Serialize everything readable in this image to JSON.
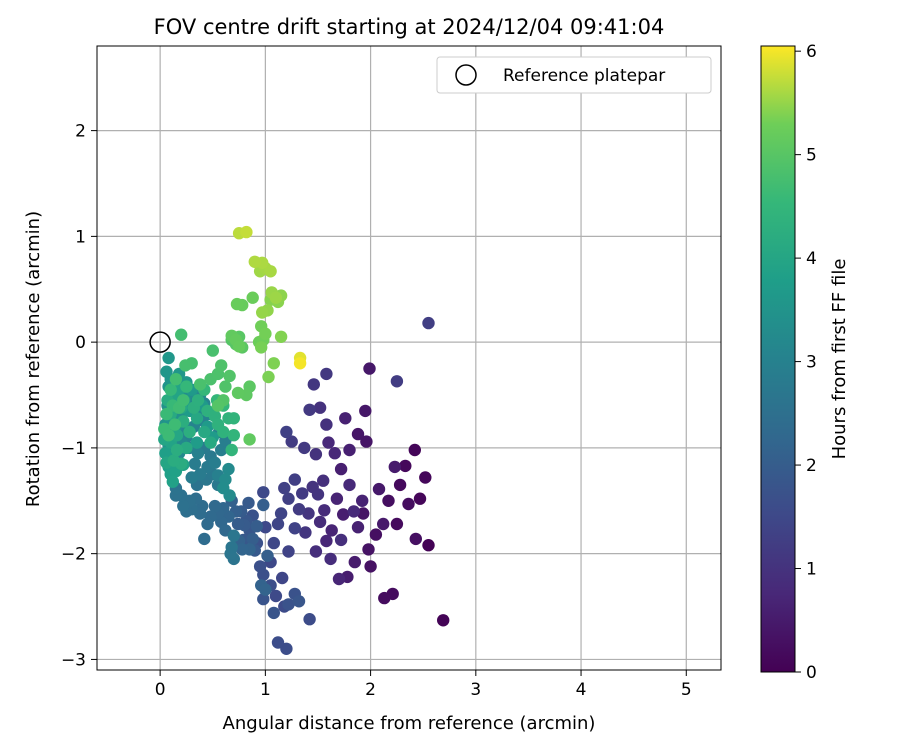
{
  "chart_data": {
    "type": "scatter",
    "title": "FOV centre drift starting at 2024/12/04 09:41:04",
    "xlabel": "Angular distance from reference (arcmin)",
    "ylabel": "Rotation from reference (arcmin)",
    "xlim": [
      -0.6,
      5.33
    ],
    "ylim": [
      -3.1,
      2.8
    ],
    "xticks": [
      0,
      1,
      2,
      3,
      4,
      5
    ],
    "xtick_labels": [
      "0",
      "1",
      "2",
      "3",
      "4",
      "5"
    ],
    "yticks": [
      -3,
      -2,
      -1,
      0,
      1,
      2
    ],
    "ytick_labels": [
      "−3",
      "−2",
      "−1",
      "0",
      "1",
      "2"
    ],
    "grid": true,
    "legend": {
      "placement": "top-right",
      "label": "Reference platepar"
    },
    "reference_point": {
      "x": 0,
      "y": 0
    },
    "colormap": "viridis",
    "colorbar": {
      "label": "Hours from first FF file",
      "range": [
        0,
        6.05
      ],
      "ticks": [
        0,
        1,
        2,
        3,
        4,
        5,
        6
      ],
      "tick_labels": [
        "0",
        "1",
        "2",
        "3",
        "4",
        "5",
        "6"
      ]
    },
    "points": [
      [
        2.55,
        -1.92,
        0.02
      ],
      [
        2.69,
        -2.63,
        0.05
      ],
      [
        2.42,
        -1.02,
        0.08
      ],
      [
        2.47,
        -1.48,
        0.1
      ],
      [
        2.52,
        -1.28,
        0.12
      ],
      [
        2.33,
        -1.17,
        0.14
      ],
      [
        2.28,
        -1.35,
        0.16
      ],
      [
        2.25,
        -1.72,
        0.18
      ],
      [
        2.21,
        -2.38,
        0.2
      ],
      [
        2.13,
        -2.42,
        0.22
      ],
      [
        2.36,
        -1.53,
        0.24
      ],
      [
        2.17,
        -1.5,
        0.26
      ],
      [
        2.05,
        -1.82,
        0.28
      ],
      [
        2.43,
        -1.86,
        0.3
      ],
      [
        2.0,
        -2.12,
        0.32
      ],
      [
        1.98,
        -1.96,
        0.34
      ],
      [
        1.93,
        -1.62,
        0.36
      ],
      [
        1.96,
        -0.94,
        0.38
      ],
      [
        1.88,
        -0.87,
        0.4
      ],
      [
        1.95,
        -0.65,
        0.42
      ],
      [
        1.99,
        -0.25,
        0.44
      ],
      [
        2.08,
        -1.39,
        0.46
      ],
      [
        2.12,
        -1.72,
        0.48
      ],
      [
        2.23,
        -1.18,
        0.5
      ],
      [
        1.85,
        -2.08,
        0.52
      ],
      [
        1.78,
        -2.22,
        0.54
      ],
      [
        1.74,
        -1.63,
        0.56
      ],
      [
        1.72,
        -1.2,
        0.58
      ],
      [
        1.8,
        -1.02,
        0.6
      ],
      [
        1.76,
        -0.72,
        0.62
      ],
      [
        1.88,
        -1.75,
        0.64
      ],
      [
        1.92,
        -1.5,
        0.66
      ],
      [
        1.68,
        -1.48,
        0.68
      ],
      [
        1.63,
        -1.78,
        0.7
      ],
      [
        1.7,
        -2.24,
        0.72
      ],
      [
        1.58,
        -1.88,
        0.74
      ],
      [
        1.66,
        -1.05,
        0.76
      ],
      [
        1.6,
        -0.95,
        0.78
      ],
      [
        1.8,
        -1.35,
        0.8
      ],
      [
        1.84,
        -1.6,
        0.82
      ],
      [
        1.56,
        -1.59,
        0.84
      ],
      [
        1.52,
        -1.7,
        0.86
      ],
      [
        1.62,
        -2.05,
        0.88
      ],
      [
        1.48,
        -1.98,
        0.9
      ],
      [
        1.72,
        -1.87,
        0.92
      ],
      [
        1.55,
        -1.31,
        0.94
      ],
      [
        1.58,
        -0.78,
        0.96
      ],
      [
        1.52,
        -0.62,
        0.98
      ],
      [
        1.48,
        -1.06,
        1.0
      ],
      [
        1.45,
        -1.37,
        1.02
      ],
      [
        1.5,
        -1.44,
        1.04
      ],
      [
        1.41,
        -1.62,
        1.06
      ],
      [
        1.38,
        -1.8,
        1.08
      ],
      [
        1.46,
        -0.4,
        1.1
      ],
      [
        1.58,
        -0.3,
        1.12
      ],
      [
        1.42,
        -0.64,
        1.14
      ],
      [
        1.37,
        -1.0,
        1.16
      ],
      [
        1.35,
        -1.43,
        1.18
      ],
      [
        1.32,
        -1.58,
        1.2
      ],
      [
        1.25,
        -0.94,
        1.22
      ],
      [
        2.25,
        -0.37,
        1.24
      ],
      [
        2.55,
        0.18,
        1.26
      ],
      [
        1.28,
        -1.3,
        1.28
      ],
      [
        1.22,
        -1.48,
        1.3
      ],
      [
        1.18,
        -1.38,
        1.32
      ],
      [
        1.2,
        -0.85,
        1.34
      ],
      [
        1.28,
        -1.76,
        1.36
      ],
      [
        1.22,
        -1.98,
        1.38
      ],
      [
        1.15,
        -1.62,
        1.4
      ],
      [
        1.12,
        -1.72,
        1.42
      ],
      [
        1.16,
        -2.23,
        1.44
      ],
      [
        1.08,
        -1.9,
        1.46
      ],
      [
        1.05,
        -2.08,
        1.48
      ],
      [
        1.0,
        -1.75,
        1.5
      ],
      [
        0.98,
        -1.42,
        1.52
      ],
      [
        1.1,
        -2.4,
        1.54
      ],
      [
        1.18,
        -2.5,
        1.56
      ],
      [
        1.42,
        -2.62,
        1.58
      ],
      [
        1.2,
        -2.9,
        1.6
      ],
      [
        1.12,
        -2.84,
        1.62
      ],
      [
        1.05,
        -2.3,
        1.64
      ],
      [
        0.98,
        -2.2,
        1.66
      ],
      [
        0.95,
        -2.12,
        1.68
      ],
      [
        0.92,
        -1.9,
        1.7
      ],
      [
        0.88,
        -1.64,
        1.72
      ],
      [
        1.28,
        -2.38,
        1.74
      ],
      [
        1.22,
        -2.48,
        1.76
      ],
      [
        0.98,
        -2.43,
        1.78
      ],
      [
        1.08,
        -2.56,
        1.8
      ],
      [
        1.32,
        -2.45,
        1.82
      ],
      [
        0.85,
        -1.78,
        1.84
      ],
      [
        0.82,
        -1.69,
        1.86
      ],
      [
        0.79,
        -1.87,
        1.88
      ],
      [
        0.9,
        -1.97,
        1.9
      ],
      [
        0.84,
        -1.52,
        1.92
      ],
      [
        0.8,
        -1.73,
        1.94
      ],
      [
        0.77,
        -1.6,
        1.96
      ],
      [
        0.74,
        -1.72,
        1.98
      ],
      [
        0.92,
        -1.74,
        2.0
      ],
      [
        0.88,
        -1.86,
        2.02
      ],
      [
        1.02,
        -2.02,
        2.04
      ],
      [
        0.98,
        -1.54,
        2.06
      ],
      [
        0.72,
        -1.6,
        2.08
      ],
      [
        0.68,
        -1.5,
        2.1
      ],
      [
        0.75,
        -1.88,
        2.12
      ],
      [
        0.96,
        -2.3,
        2.14
      ],
      [
        1.0,
        -2.34,
        2.16
      ],
      [
        0.85,
        -1.96,
        2.18
      ],
      [
        0.78,
        -1.96,
        2.2
      ],
      [
        0.65,
        -1.65,
        2.22
      ],
      [
        0.6,
        -1.57,
        2.24
      ],
      [
        0.58,
        -1.7,
        2.26
      ],
      [
        0.55,
        -1.62,
        2.28
      ],
      [
        0.62,
        -1.78,
        2.3
      ],
      [
        0.52,
        -1.55,
        2.32
      ],
      [
        0.48,
        -1.65,
        2.34
      ],
      [
        0.45,
        -1.72,
        2.36
      ],
      [
        0.42,
        -1.86,
        2.38
      ],
      [
        0.4,
        -1.55,
        2.4
      ],
      [
        0.38,
        -1.62,
        2.42
      ],
      [
        0.34,
        -1.48,
        2.44
      ],
      [
        0.3,
        -1.58,
        2.46
      ],
      [
        0.25,
        -1.6,
        2.48
      ],
      [
        0.28,
        -1.5,
        2.5
      ],
      [
        0.22,
        -1.55,
        2.52
      ],
      [
        0.2,
        -1.45,
        2.54
      ],
      [
        0.15,
        -1.45,
        2.56
      ],
      [
        0.15,
        -1.38,
        2.58
      ],
      [
        0.35,
        -1.35,
        2.6
      ],
      [
        0.7,
        -2.05,
        2.62
      ],
      [
        0.67,
        -2.0,
        2.64
      ],
      [
        0.68,
        -1.94,
        2.66
      ],
      [
        0.7,
        -1.83,
        2.68
      ],
      [
        0.44,
        -1.3,
        2.7
      ],
      [
        0.5,
        -1.25,
        2.72
      ],
      [
        0.55,
        -1.35,
        2.74
      ],
      [
        0.48,
        -1.08,
        2.76
      ],
      [
        0.42,
        -1.0,
        2.78
      ],
      [
        0.45,
        -1.18,
        2.8
      ],
      [
        0.38,
        -1.25,
        2.82
      ],
      [
        0.33,
        -1.15,
        2.84
      ],
      [
        0.3,
        -1.28,
        2.86
      ],
      [
        0.52,
        -1.14,
        2.88
      ],
      [
        0.58,
        -1.02,
        2.9
      ],
      [
        0.62,
        -0.93,
        2.92
      ],
      [
        0.56,
        -0.85,
        2.94
      ],
      [
        0.55,
        -1.26,
        2.96
      ],
      [
        0.36,
        -1.05,
        2.98
      ],
      [
        0.28,
        -1.0,
        3.0
      ],
      [
        0.25,
        -0.9,
        3.02
      ],
      [
        0.32,
        -0.8,
        3.04
      ],
      [
        0.4,
        -0.74,
        3.06
      ],
      [
        0.47,
        -0.68,
        3.08
      ],
      [
        0.42,
        -0.58,
        3.1
      ],
      [
        0.35,
        -0.65,
        3.12
      ],
      [
        0.3,
        -0.55,
        3.14
      ],
      [
        0.38,
        -0.5,
        3.16
      ],
      [
        0.22,
        -0.8,
        3.18
      ],
      [
        0.2,
        -0.95,
        3.2
      ],
      [
        0.18,
        -1.05,
        3.22
      ],
      [
        0.65,
        -1.2,
        3.24
      ],
      [
        0.62,
        -1.3,
        3.26
      ],
      [
        0.66,
        -1.45,
        3.28
      ],
      [
        0.6,
        -1.38,
        3.3
      ],
      [
        0.27,
        -0.48,
        3.32
      ],
      [
        0.15,
        -0.6,
        3.34
      ],
      [
        0.12,
        -0.72,
        3.36
      ],
      [
        0.1,
        -0.85,
        3.38
      ],
      [
        0.08,
        -0.98,
        3.4
      ],
      [
        0.15,
        -0.8,
        3.42
      ],
      [
        0.2,
        -0.7,
        3.44
      ],
      [
        0.07,
        -0.6,
        3.46
      ],
      [
        0.05,
        -0.78,
        3.48
      ],
      [
        0.12,
        -0.5,
        3.5
      ],
      [
        0.08,
        -0.42,
        3.52
      ],
      [
        0.1,
        -0.35,
        3.54
      ],
      [
        0.06,
        -0.28,
        3.56
      ],
      [
        0.18,
        -0.3,
        3.58
      ],
      [
        0.08,
        -0.15,
        3.6
      ],
      [
        0.25,
        -0.38,
        3.62
      ],
      [
        0.3,
        -0.45,
        3.64
      ],
      [
        0.4,
        -0.6,
        3.66
      ],
      [
        0.45,
        -0.8,
        3.68
      ],
      [
        0.5,
        -0.9,
        3.7
      ],
      [
        0.35,
        -0.95,
        3.72
      ],
      [
        0.28,
        -0.65,
        3.74
      ],
      [
        0.23,
        -0.55,
        3.76
      ],
      [
        0.12,
        -1.1,
        3.78
      ],
      [
        0.08,
        -1.18,
        3.8
      ],
      [
        0.05,
        -1.05,
        3.82
      ],
      [
        0.1,
        -1.25,
        3.84
      ],
      [
        0.15,
        -1.22,
        3.86
      ],
      [
        0.12,
        -1.32,
        3.88
      ],
      [
        0.22,
        -1.16,
        3.9
      ],
      [
        0.1,
        -0.95,
        3.92
      ],
      [
        0.18,
        -0.45,
        3.94
      ],
      [
        0.14,
        -0.5,
        3.96
      ],
      [
        0.04,
        -0.92,
        3.98
      ],
      [
        0.06,
        -1.14,
        4.0
      ],
      [
        0.16,
        -0.88,
        4.02
      ],
      [
        0.2,
        -0.62,
        4.04
      ],
      [
        0.35,
        -0.72,
        4.06
      ],
      [
        0.42,
        -0.85,
        4.08
      ],
      [
        0.48,
        -0.95,
        4.1
      ],
      [
        0.25,
        -1.0,
        4.12
      ],
      [
        0.1,
        -0.68,
        4.14
      ],
      [
        0.07,
        -0.55,
        4.16
      ],
      [
        0.2,
        -1.15,
        4.18
      ],
      [
        0.13,
        -1.12,
        4.2
      ],
      [
        0.16,
        -1.02,
        4.22
      ],
      [
        0.22,
        -0.75,
        4.24
      ],
      [
        0.28,
        -0.85,
        4.26
      ],
      [
        0.32,
        -0.62,
        4.28
      ],
      [
        0.36,
        -0.55,
        4.3
      ],
      [
        0.45,
        -0.65,
        4.32
      ],
      [
        0.52,
        -0.7,
        4.34
      ],
      [
        0.55,
        -0.78,
        4.36
      ],
      [
        0.6,
        -0.85,
        4.38
      ],
      [
        0.65,
        -0.72,
        4.4
      ],
      [
        0.7,
        -0.72,
        4.42
      ],
      [
        0.68,
        -1.02,
        4.44
      ],
      [
        0.7,
        -0.88,
        4.46
      ],
      [
        0.6,
        -0.6,
        4.48
      ],
      [
        0.54,
        -0.55,
        4.5
      ],
      [
        0.42,
        -0.45,
        4.52
      ],
      [
        0.25,
        -0.42,
        4.54
      ],
      [
        0.1,
        -0.45,
        4.56
      ],
      [
        0.12,
        -0.6,
        4.58
      ],
      [
        0.06,
        -0.68,
        4.6
      ],
      [
        0.04,
        -0.82,
        4.62
      ],
      [
        0.08,
        -0.88,
        4.64
      ],
      [
        0.14,
        -0.78,
        4.66
      ],
      [
        0.18,
        -0.62,
        4.68
      ],
      [
        0.22,
        -0.55,
        4.7
      ],
      [
        0.15,
        -0.35,
        4.72
      ],
      [
        0.2,
        0.07,
        4.74
      ],
      [
        0.3,
        -0.2,
        4.76
      ],
      [
        0.24,
        -0.22,
        4.78
      ],
      [
        0.5,
        -0.08,
        4.8
      ],
      [
        0.38,
        -0.4,
        4.82
      ],
      [
        0.48,
        -0.35,
        4.84
      ],
      [
        0.55,
        -0.3,
        4.86
      ],
      [
        0.58,
        -0.22,
        4.88
      ],
      [
        0.62,
        -0.42,
        4.9
      ],
      [
        0.66,
        -0.32,
        4.92
      ],
      [
        0.6,
        -0.55,
        4.94
      ],
      [
        0.55,
        -0.6,
        4.96
      ],
      [
        0.68,
        0.02,
        4.98
      ],
      [
        0.72,
        -0.02,
        5.0
      ],
      [
        0.75,
        0.05,
        5.02
      ],
      [
        0.78,
        -0.05,
        5.04
      ],
      [
        0.85,
        -0.42,
        5.06
      ],
      [
        0.82,
        -0.5,
        5.08
      ],
      [
        0.74,
        -0.48,
        5.1
      ],
      [
        0.85,
        -0.92,
        5.12
      ],
      [
        0.68,
        0.06,
        5.14
      ],
      [
        0.72,
        0.02,
        5.16
      ],
      [
        0.75,
        -0.04,
        5.18
      ],
      [
        0.78,
        0.35,
        5.2
      ],
      [
        0.73,
        0.36,
        5.22
      ],
      [
        0.88,
        0.42,
        5.24
      ],
      [
        0.94,
        0.0,
        5.26
      ],
      [
        0.98,
        0.02,
        5.28
      ],
      [
        0.96,
        0.15,
        5.3
      ],
      [
        1.0,
        0.08,
        5.32
      ],
      [
        0.96,
        -0.05,
        5.34
      ],
      [
        1.03,
        -0.33,
        5.36
      ],
      [
        1.08,
        -0.2,
        5.38
      ],
      [
        1.15,
        0.05,
        5.4
      ],
      [
        1.05,
        0.4,
        5.42
      ],
      [
        1.12,
        0.38,
        5.44
      ],
      [
        1.15,
        0.44,
        5.46
      ],
      [
        1.02,
        0.3,
        5.48
      ],
      [
        0.97,
        0.28,
        5.5
      ],
      [
        1.06,
        0.47,
        5.52
      ],
      [
        1.1,
        0.42,
        5.54
      ],
      [
        0.95,
        0.67,
        5.56
      ],
      [
        1.0,
        0.7,
        5.58
      ],
      [
        1.05,
        0.67,
        5.6
      ],
      [
        0.97,
        0.75,
        5.62
      ],
      [
        0.9,
        0.76,
        5.64
      ],
      [
        0.75,
        1.03,
        5.7
      ],
      [
        0.82,
        1.04,
        5.75
      ],
      [
        1.33,
        -0.15,
        5.9
      ],
      [
        1.33,
        -0.2,
        6.0
      ]
    ]
  }
}
